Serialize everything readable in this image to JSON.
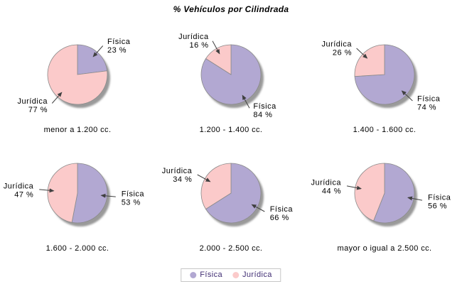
{
  "title": "% Vehículos por Cilindrada",
  "value_suffix": " %",
  "series": [
    {
      "name": "Física",
      "color": "#b2a8d2"
    },
    {
      "name": "Jurídica",
      "color": "#fbcaca"
    }
  ],
  "legend": {
    "position": "bottom",
    "items": [
      {
        "label": "Física",
        "color": "#b2a8d2"
      },
      {
        "label": "Jurídica",
        "color": "#fbcaca"
      }
    ]
  },
  "styles": {
    "slice_border": "#8a8a8a",
    "shadow_color": "#9a9a9a",
    "callout_line": "#404040",
    "legend_text": "#402d73",
    "legend_border": "#c6c6c6"
  },
  "chart_data": [
    {
      "type": "pie",
      "title": "menor a 1.200 cc.",
      "labels": [
        "Física",
        "Jurídica"
      ],
      "values": [
        23,
        77
      ]
    },
    {
      "type": "pie",
      "title": "1.200 - 1.400 cc.",
      "labels": [
        "Física",
        "Jurídica"
      ],
      "values": [
        84,
        16
      ]
    },
    {
      "type": "pie",
      "title": "1.400 - 1.600 cc.",
      "labels": [
        "Física",
        "Jurídica"
      ],
      "values": [
        74,
        26
      ]
    },
    {
      "type": "pie",
      "title": "1.600 - 2.000 cc.",
      "labels": [
        "Física",
        "Jurídica"
      ],
      "values": [
        53,
        47
      ]
    },
    {
      "type": "pie",
      "title": "2.000 - 2.500 cc.",
      "labels": [
        "Física",
        "Jurídica"
      ],
      "values": [
        66,
        34
      ]
    },
    {
      "type": "pie",
      "title": "mayor o igual a 2.500 cc.",
      "labels": [
        "Física",
        "Jurídica"
      ],
      "values": [
        56,
        44
      ]
    }
  ]
}
